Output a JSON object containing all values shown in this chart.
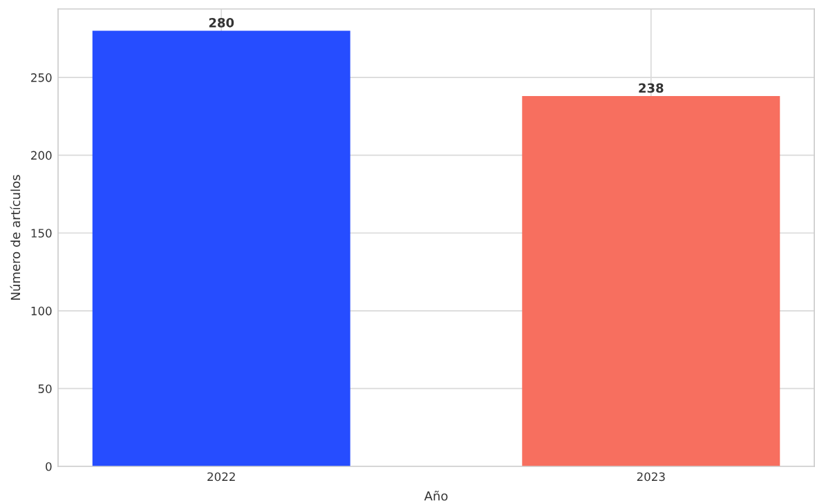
{
  "chart_data": {
    "type": "bar",
    "xlabel": "Año",
    "ylabel": "Número de artículos",
    "categories": [
      "2022",
      "2023"
    ],
    "values": [
      280,
      238
    ],
    "colors": [
      "#264dff",
      "#f76f5f"
    ],
    "ylim": [
      0,
      294
    ],
    "yticks": [
      0,
      50,
      100,
      150,
      200,
      250
    ],
    "grid": true,
    "data_labels": true
  }
}
